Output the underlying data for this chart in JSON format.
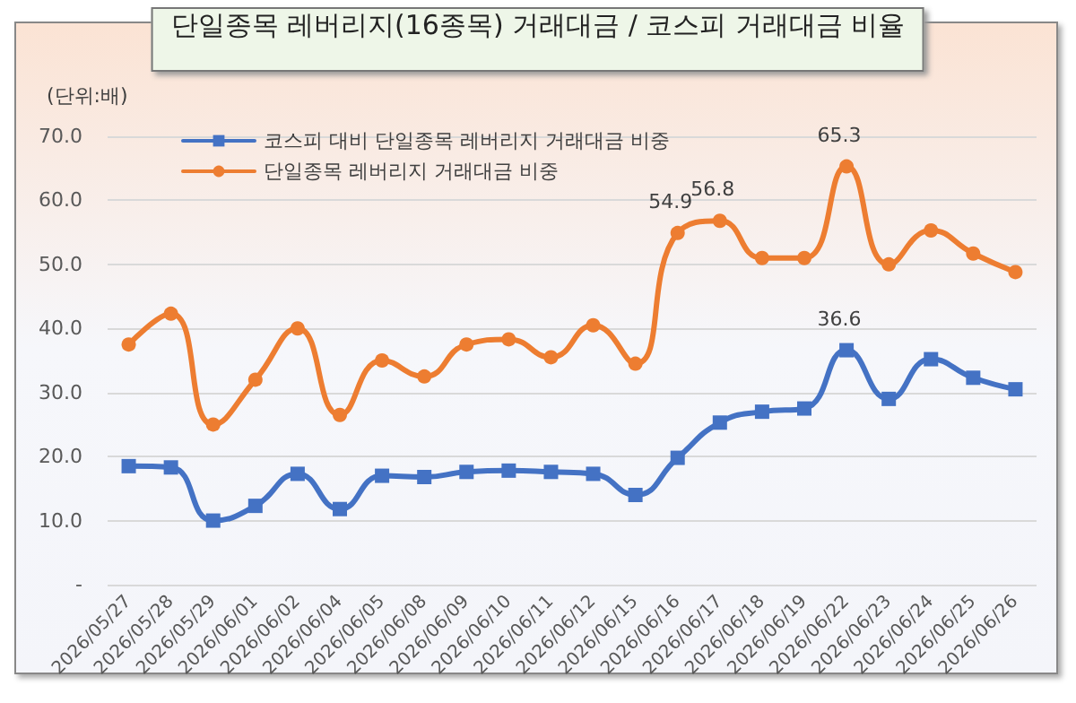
{
  "chart_data": {
    "type": "line",
    "title": "단일종목 레버리지(16종목) 거래대금 / 코스피 거래대금 비율",
    "ylabel": "(단위:배)",
    "categories": [
      "2026/05/27",
      "2026/05/28",
      "2026/05/29",
      "2026/06/01",
      "2026/06/02",
      "2026/06/04",
      "2026/06/05",
      "2026/06/08",
      "2026/06/09",
      "2026/06/10",
      "2026/06/11",
      "2026/06/12",
      "2026/06/15",
      "2026/06/16",
      "2026/06/17",
      "2026/06/18",
      "2026/06/19",
      "2026/06/22",
      "2026/06/23",
      "2026/06/24",
      "2026/06/25",
      "2026/06/26"
    ],
    "series": [
      {
        "name": "코스피 대비 단일종목 레버리지 거래대금 비중",
        "color": "#4472c4",
        "marker": "square",
        "values": [
          18.5,
          18.3,
          10.0,
          12.3,
          17.3,
          11.8,
          17.0,
          16.8,
          17.6,
          17.8,
          17.6,
          17.3,
          14.0,
          19.8,
          25.3,
          27.0,
          27.5,
          36.6,
          29.0,
          35.2,
          32.3,
          30.5
        ],
        "value_labels": [
          null,
          null,
          null,
          null,
          null,
          null,
          null,
          null,
          null,
          null,
          null,
          null,
          null,
          null,
          null,
          null,
          null,
          "36.6",
          null,
          null,
          null,
          null
        ]
      },
      {
        "name": "단일종목 레버리지 거래대금 비중",
        "color": "#ed7d31",
        "marker": "circle",
        "values": [
          37.5,
          42.3,
          25.0,
          32.0,
          40.0,
          26.5,
          35.0,
          32.5,
          37.5,
          38.3,
          35.5,
          40.5,
          34.5,
          54.9,
          56.8,
          51.0,
          51.0,
          65.3,
          50.0,
          55.3,
          51.7,
          48.8
        ],
        "value_labels": [
          null,
          null,
          null,
          null,
          null,
          null,
          null,
          null,
          null,
          null,
          null,
          null,
          null,
          "54.9",
          "56.8",
          null,
          null,
          "65.3",
          null,
          null,
          null,
          null
        ]
      }
    ],
    "ylim": [
      0,
      70
    ],
    "yticks": [
      {
        "value": 0,
        "label": "-"
      },
      {
        "value": 10,
        "label": "10.0"
      },
      {
        "value": 20,
        "label": "20.0"
      },
      {
        "value": 30,
        "label": "30.0"
      },
      {
        "value": 40,
        "label": "40.0"
      },
      {
        "value": 50,
        "label": "50.0"
      },
      {
        "value": 60,
        "label": "60.0"
      },
      {
        "value": 70,
        "label": "70.0"
      }
    ],
    "grid": "y",
    "legend": "top left",
    "line_style": "solid"
  }
}
